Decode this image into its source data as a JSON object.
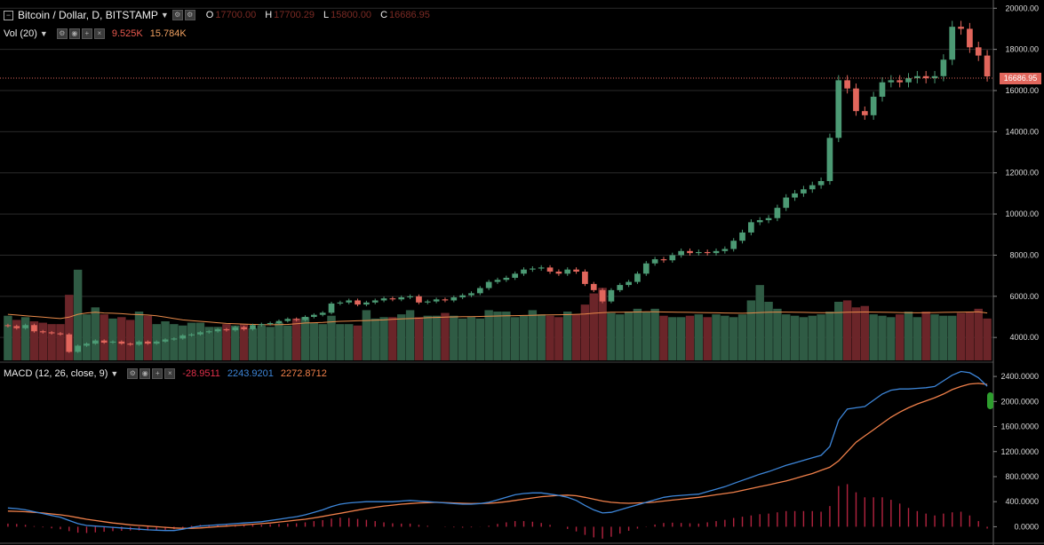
{
  "header": {
    "symbol_title": "Bitcoin / Dollar, D, BITSTAMP",
    "open_key": "O",
    "open_value": "17700.00",
    "high_key": "H",
    "high_value": "17700.29",
    "low_key": "L",
    "low_value": "15800.00",
    "close_key": "C",
    "close_value": "16686.95"
  },
  "volume_legend": {
    "label": "Vol (20)",
    "value": "9.525K",
    "ma_value": "15.784K"
  },
  "macd_legend": {
    "label": "MACD (12, 26, close, 9)",
    "histogram": "-28.9511",
    "macd": "2243.9201",
    "signal": "2272.8712"
  },
  "last_price_label": "16686.95",
  "colors": {
    "up": "#4c9a74",
    "down": "#e1665c",
    "vol_up": "#2f5b44",
    "vol_down": "#6b2529",
    "vol_ma": "#e88a4a",
    "macd": "#3d86d9",
    "signal": "#f0804a",
    "hist": "#b3233f",
    "grid": "#2a2a2a"
  },
  "chart_data": [
    {
      "type": "candlestick",
      "title": "Bitcoin / Dollar, D, BITSTAMP",
      "ylim": [
        2800,
        20400
      ],
      "yticks": [
        "4000.00",
        "6000.00",
        "8000.00",
        "10000.00",
        "12000.00",
        "14000.00",
        "16000.00",
        "18000.00",
        "20000.00"
      ],
      "close": [
        4550,
        4450,
        4600,
        4300,
        4250,
        4200,
        4150,
        3300,
        3600,
        3700,
        3850,
        3750,
        3800,
        3700,
        3650,
        3800,
        3700,
        3800,
        3900,
        3950,
        4100,
        4150,
        4250,
        4300,
        4400,
        4350,
        4500,
        4400,
        4600,
        4650,
        4700,
        4800,
        4900,
        4850,
        5000,
        5100,
        5200,
        5650,
        5700,
        5800,
        5600,
        5700,
        5800,
        5900,
        5850,
        5950,
        6000,
        5700,
        5750,
        5850,
        5800,
        5950,
        6050,
        6150,
        6400,
        6700,
        6800,
        6900,
        7100,
        7300,
        7350,
        7400,
        7200,
        7100,
        7300,
        7200,
        6600,
        6300,
        5750,
        6300,
        6550,
        6700,
        7100,
        7600,
        7800,
        7750,
        8000,
        8200,
        8100,
        8150,
        8100,
        8200,
        8300,
        8700,
        9100,
        9600,
        9700,
        9800,
        10300,
        10800,
        11000,
        11200,
        11400,
        11600,
        13700,
        16500,
        16100,
        15000,
        14800,
        15700,
        16400,
        16500,
        16400,
        16600,
        16700,
        16600,
        16700,
        17500,
        19100,
        19000,
        18100,
        17700,
        16686.95
      ],
      "volume": [
        3200,
        2900,
        3100,
        2800,
        2700,
        2600,
        2600,
        4700,
        6500,
        3300,
        3800,
        3300,
        3000,
        3100,
        2900,
        3500,
        3200,
        2600,
        2800,
        2600,
        2500,
        2700,
        2700,
        2400,
        2400,
        2600,
        2500,
        2600,
        2300,
        2500,
        2400,
        2700,
        2500,
        3000,
        3100,
        2700,
        2600,
        3200,
        2600,
        2600,
        2500,
        3600,
        3000,
        3100,
        3100,
        3300,
        3600,
        3100,
        3200,
        3200,
        3400,
        3200,
        3000,
        3100,
        3000,
        3600,
        3500,
        3500,
        3100,
        3200,
        3600,
        3300,
        3200,
        3100,
        3500,
        3300,
        4000,
        4800,
        5200,
        3400,
        3300,
        3500,
        3700,
        3500,
        3700,
        3200,
        3100,
        3100,
        3200,
        3300,
        3100,
        3300,
        3200,
        3100,
        3300,
        4300,
        5400,
        4200,
        3700,
        3300,
        3200,
        3100,
        3200,
        3300,
        3500,
        4200,
        4300,
        3800,
        3900,
        3300,
        3200,
        3100,
        3300,
        3500,
        3100,
        3500,
        3300,
        3200,
        3200,
        3400,
        3500,
        3700,
        3000
      ],
      "volume_ma": [
        3300,
        3250,
        3200,
        3150,
        3100,
        3050,
        3000,
        3100,
        3300,
        3400,
        3450,
        3400,
        3380,
        3350,
        3300,
        3280,
        3250,
        3200,
        3100,
        3000,
        2900,
        2850,
        2800,
        2750,
        2700,
        2650,
        2620,
        2600,
        2580,
        2560,
        2550,
        2560,
        2580,
        2620,
        2680,
        2700,
        2720,
        2760,
        2800,
        2820,
        2840,
        2860,
        2880,
        2900,
        2940,
        2980,
        3000,
        3020,
        3060,
        3080,
        3100,
        3120,
        3130,
        3140,
        3150,
        3160,
        3180,
        3200,
        3210,
        3220,
        3230,
        3250,
        3260,
        3270,
        3280,
        3300,
        3330,
        3380,
        3420,
        3450,
        3450,
        3460,
        3470,
        3480,
        3480,
        3470,
        3460,
        3450,
        3440,
        3430,
        3420,
        3410,
        3400,
        3390,
        3380,
        3400,
        3430,
        3450,
        3460,
        3460,
        3450,
        3440,
        3430,
        3420,
        3420,
        3430,
        3450,
        3460,
        3470,
        3460,
        3450,
        3440,
        3430,
        3420,
        3410,
        3420,
        3430,
        3440,
        3450,
        3460,
        3470,
        3480,
        3400
      ]
    },
    {
      "type": "line",
      "title": "MACD (12, 26, close, 9)",
      "ylim": [
        -150,
        2600
      ],
      "yticks": [
        "0.0000",
        "400.0000",
        "800.0000",
        "1200.0000",
        "1600.0000",
        "2000.0000",
        "2400.0000"
      ],
      "series": [
        {
          "name": "MACD",
          "values": [
            300,
            290,
            270,
            240,
            210,
            180,
            150,
            100,
            50,
            20,
            10,
            0,
            -10,
            -20,
            -30,
            -40,
            -50,
            -55,
            -60,
            -60,
            -40,
            -10,
            10,
            20,
            30,
            40,
            50,
            60,
            70,
            80,
            100,
            120,
            140,
            160,
            190,
            230,
            270,
            320,
            360,
            380,
            390,
            400,
            400,
            400,
            400,
            410,
            420,
            410,
            400,
            390,
            380,
            370,
            360,
            360,
            370,
            390,
            430,
            470,
            510,
            530,
            540,
            540,
            520,
            500,
            470,
            420,
            340,
            270,
            220,
            230,
            270,
            310,
            350,
            390,
            430,
            470,
            490,
            500,
            510,
            520,
            560,
            600,
            640,
            690,
            740,
            790,
            840,
            880,
            930,
            980,
            1020,
            1060,
            1100,
            1140,
            1280,
            1700,
            1880,
            1900,
            1920,
            2020,
            2120,
            2180,
            2200,
            2200,
            2210,
            2220,
            2240,
            2330,
            2420,
            2480,
            2460,
            2380,
            2243.9201
          ]
        },
        {
          "name": "Signal",
          "values": [
            250,
            245,
            240,
            230,
            220,
            205,
            190,
            170,
            145,
            120,
            100,
            80,
            60,
            45,
            30,
            20,
            10,
            0,
            -10,
            -20,
            -25,
            -25,
            -20,
            -10,
            0,
            10,
            20,
            30,
            40,
            50,
            60,
            75,
            90,
            105,
            120,
            140,
            165,
            190,
            215,
            240,
            265,
            290,
            310,
            330,
            345,
            360,
            370,
            380,
            385,
            390,
            385,
            380,
            375,
            370,
            372,
            375,
            385,
            400,
            420,
            440,
            460,
            480,
            490,
            500,
            505,
            495,
            470,
            440,
            410,
            390,
            380,
            375,
            380,
            385,
            395,
            410,
            425,
            440,
            455,
            470,
            490,
            510,
            530,
            550,
            580,
            610,
            640,
            670,
            700,
            730,
            770,
            810,
            850,
            900,
            950,
            1050,
            1200,
            1350,
            1450,
            1550,
            1650,
            1750,
            1830,
            1900,
            1960,
            2010,
            2060,
            2120,
            2190,
            2240,
            2280,
            2290,
            2272.8712
          ]
        },
        {
          "name": "Histogram",
          "values": [
            50,
            45,
            30,
            10,
            -10,
            -25,
            -40,
            -70,
            -95,
            -100,
            -90,
            -80,
            -70,
            -65,
            -60,
            -60,
            -60,
            -55,
            -50,
            -40,
            -15,
            15,
            30,
            30,
            30,
            30,
            30,
            30,
            30,
            30,
            40,
            45,
            50,
            55,
            70,
            90,
            105,
            130,
            145,
            140,
            125,
            110,
            90,
            70,
            55,
            50,
            50,
            30,
            15,
            0,
            -5,
            -10,
            -15,
            -10,
            -2,
            15,
            45,
            70,
            90,
            90,
            80,
            60,
            30,
            0,
            -35,
            -75,
            -130,
            -170,
            -190,
            -160,
            -110,
            -65,
            -30,
            5,
            35,
            60,
            65,
            60,
            55,
            50,
            70,
            90,
            110,
            140,
            160,
            180,
            200,
            210,
            230,
            250,
            250,
            250,
            250,
            240,
            330,
            650,
            680,
            550,
            470,
            470,
            470,
            430,
            370,
            300,
            250,
            210,
            180,
            210,
            230,
            240,
            180,
            90,
            -28.9511
          ]
        }
      ]
    }
  ]
}
